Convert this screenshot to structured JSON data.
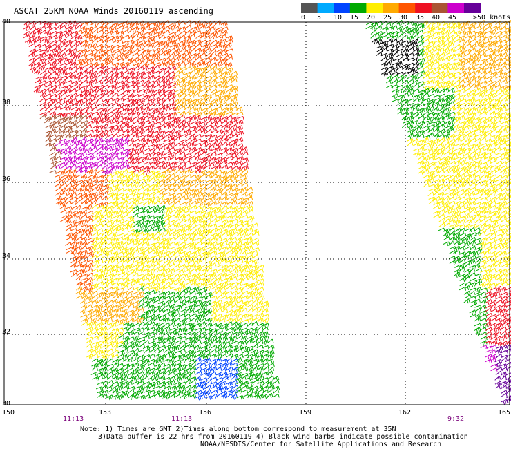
{
  "title": "ASCAT 25KM NOAA Winds 20160119 ascending",
  "legend": {
    "labels": [
      "0",
      "5",
      "10",
      "15",
      "20",
      "25",
      "30",
      "35",
      "40",
      "45",
      ">50 knots"
    ],
    "colors": [
      "#555555",
      "#00aaff",
      "#0044ff",
      "#00aa00",
      "#ffee00",
      "#ffaa00",
      "#ff5500",
      "#ee1122",
      "#aa5533",
      "#cc00cc",
      "#660099"
    ]
  },
  "lat_labels": [
    "40",
    "38",
    "36",
    "34",
    "32",
    "30"
  ],
  "lon_labels": [
    "150",
    "153",
    "156",
    "159",
    "162",
    "165"
  ],
  "time_labels": [
    "11:13",
    "11:13",
    "9:32"
  ],
  "notes": {
    "line1": "Note: 1) Times are GMT 2)Times along bottom correspond to measurement at 35N",
    "line2": "3)Data buffer is 22 hrs from 20160119 4) Black wind barbs indicate possible contamination",
    "line3": "NOAA/NESDIS/Center for Satellite Applications and Research"
  },
  "chart_data": {
    "type": "wind-barb map",
    "lat_range": [
      30,
      40
    ],
    "lon_range": [
      150,
      165
    ],
    "grid": true
  }
}
